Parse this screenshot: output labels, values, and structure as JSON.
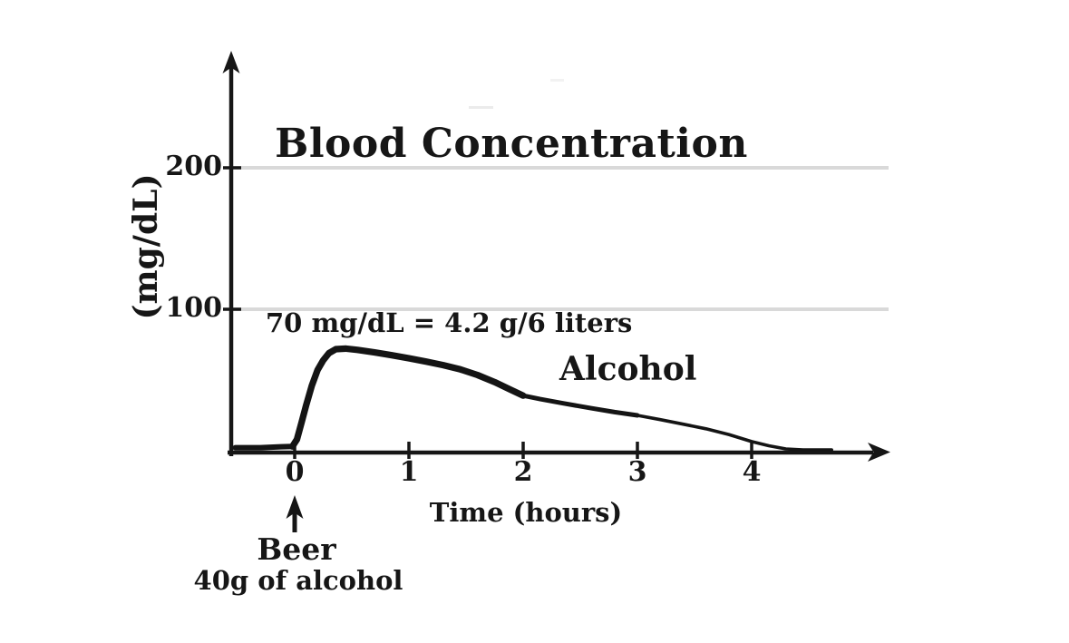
{
  "page": {
    "background": "#ffffff"
  },
  "chart_data": {
    "type": "line",
    "title": "Blood Concentration",
    "ylabel": "(mg/dL)",
    "xlabel": "Time (hours)",
    "annotation": "70 mg/dL = 4.2 g/6 liters",
    "x_ticks": [
      "0",
      "1",
      "2",
      "3",
      "4"
    ],
    "x_tick_values": [
      0,
      1,
      2,
      3,
      4
    ],
    "y_ticks": [
      "100",
      "200"
    ],
    "y_tick_values": [
      100,
      200
    ],
    "xlim": [
      -0.55,
      5.2
    ],
    "ylim": [
      0,
      283
    ],
    "grid": {
      "y_values": [
        100,
        200
      ],
      "color": "#d9d9d9",
      "on": true
    },
    "legend_position": "inline-label",
    "line_color": "#141414",
    "axis_color": "#161616",
    "event_marker": {
      "label": "Beer",
      "sublabel": "40g of alcohol",
      "x": 0,
      "arrow_icon": "up-arrow-icon"
    },
    "series": [
      {
        "name": "Alcohol",
        "units": {
          "x": "hours",
          "y": "mg/dL"
        },
        "peak": {
          "x": 0.4,
          "y": 72
        },
        "points": [
          [
            -0.52,
            2.2
          ],
          [
            -0.3,
            2.2
          ],
          [
            -0.12,
            2.8
          ],
          [
            -0.02,
            3
          ],
          [
            0.02,
            8
          ],
          [
            0.06,
            20
          ],
          [
            0.1,
            32
          ],
          [
            0.15,
            46
          ],
          [
            0.2,
            57
          ],
          [
            0.25,
            64
          ],
          [
            0.3,
            69
          ],
          [
            0.36,
            71.8
          ],
          [
            0.45,
            72.2
          ],
          [
            0.55,
            71.3
          ],
          [
            0.7,
            69.5
          ],
          [
            0.85,
            67.5
          ],
          [
            1.0,
            65.3
          ],
          [
            1.15,
            63
          ],
          [
            1.3,
            60.5
          ],
          [
            1.45,
            57.5
          ],
          [
            1.6,
            53.5
          ],
          [
            1.75,
            48.5
          ],
          [
            1.88,
            43.5
          ],
          [
            2.0,
            39
          ],
          [
            2.15,
            36.5
          ],
          [
            2.35,
            33.5
          ],
          [
            2.6,
            30
          ],
          [
            2.8,
            27.3
          ],
          [
            3.0,
            25
          ],
          [
            3.2,
            22
          ],
          [
            3.4,
            18.8
          ],
          [
            3.6,
            15.5
          ],
          [
            3.8,
            11.5
          ],
          [
            4.0,
            6.5
          ],
          [
            4.15,
            3.5
          ],
          [
            4.3,
            1.3
          ],
          [
            4.45,
            0.6
          ],
          [
            4.7,
            0.6
          ]
        ]
      }
    ]
  }
}
